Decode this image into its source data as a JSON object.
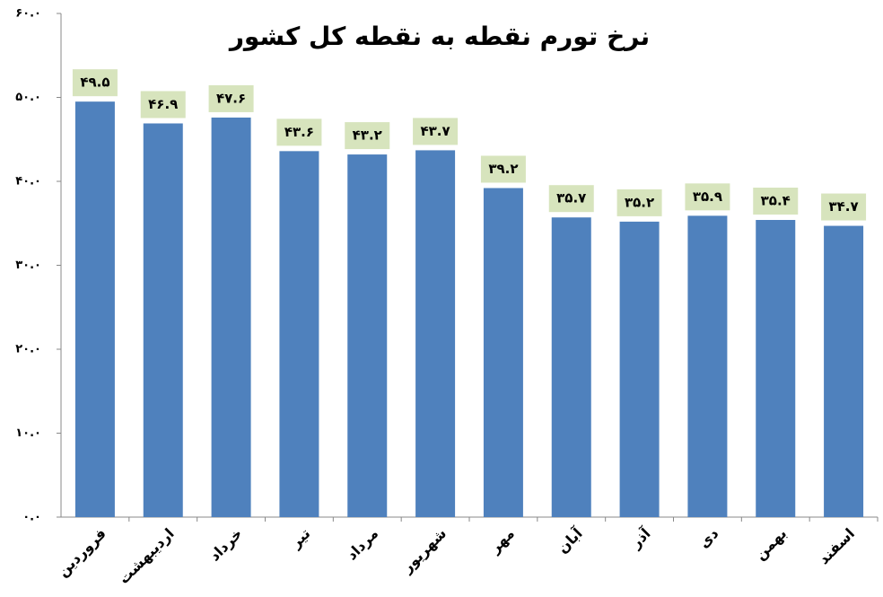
{
  "chart_data": {
    "type": "bar",
    "title": "نرخ تورم نقطه به نقطه کل کشور",
    "categories": [
      "فروردین",
      "اردیبهشت",
      "خرداد",
      "تیر",
      "مرداد",
      "شهریور",
      "مهر",
      "آبان",
      "آذر",
      "دی",
      "بهمن",
      "اسفند"
    ],
    "values": [
      49.5,
      46.9,
      47.6,
      43.6,
      43.2,
      43.7,
      39.2,
      35.7,
      35.2,
      35.9,
      35.4,
      34.7
    ],
    "value_labels": [
      "۴۹.۵",
      "۴۶.۹",
      "۴۷.۶",
      "۴۳.۶",
      "۴۳.۲",
      "۴۳.۷",
      "۳۹.۲",
      "۳۵.۷",
      "۳۵.۲",
      "۳۵.۹",
      "۳۵.۴",
      "۳۴.۷"
    ],
    "color": "#4f81bd",
    "value_label_background": "#d7e4bd",
    "ylim": [
      0,
      60
    ],
    "yticks": [
      {
        "value": 0,
        "label": "۰.۰"
      },
      {
        "value": 10,
        "label": "۱۰.۰"
      },
      {
        "value": 20,
        "label": "۲۰.۰"
      },
      {
        "value": 30,
        "label": "۳۰.۰"
      },
      {
        "value": 40,
        "label": "۴۰.۰"
      },
      {
        "value": 50,
        "label": "۵۰.۰"
      },
      {
        "value": 60,
        "label": "۶۰.۰"
      }
    ],
    "grid": false
  }
}
